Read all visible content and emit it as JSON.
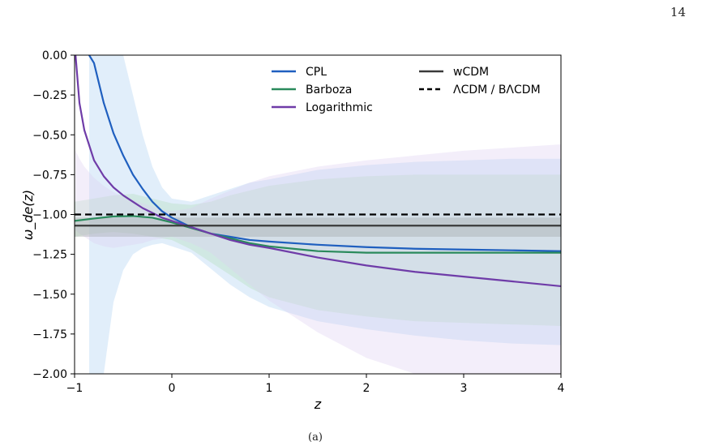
{
  "page": {
    "number": "14",
    "caption": "(a)"
  },
  "chart_data": {
    "type": "line",
    "xlabel": "z",
    "ylabel": "ω_de(z)",
    "xlim": [
      -1,
      4
    ],
    "ylim": [
      -2.0,
      0.0
    ],
    "xticks": [
      -1,
      0,
      1,
      2,
      3,
      4
    ],
    "yticks": [
      0.0,
      -0.25,
      -0.5,
      -0.75,
      -1.0,
      -1.25,
      -1.5,
      -1.75,
      -2.0
    ],
    "grid": false,
    "legend_position": "top-right",
    "series": [
      {
        "name": "CPL",
        "color": "#1f5fbf",
        "dash": "solid",
        "band_color": "#a8cdf0",
        "x": [
          -0.85,
          -0.8,
          -0.7,
          -0.6,
          -0.5,
          -0.4,
          -0.3,
          -0.2,
          -0.1,
          0,
          0.2,
          0.4,
          0.6,
          0.8,
          1,
          1.5,
          2,
          2.5,
          3,
          3.5,
          4
        ],
        "y": [
          0.0,
          -0.05,
          -0.3,
          -0.49,
          -0.63,
          -0.75,
          -0.84,
          -0.92,
          -0.98,
          -1.02,
          -1.08,
          -1.12,
          -1.14,
          -1.16,
          -1.17,
          -1.19,
          -1.205,
          -1.215,
          -1.22,
          -1.225,
          -1.23
        ],
        "upper": [
          0.0,
          0.0,
          0.0,
          0.0,
          0.0,
          -0.25,
          -0.5,
          -0.7,
          -0.83,
          -0.9,
          -0.92,
          -0.88,
          -0.84,
          -0.8,
          -0.78,
          -0.72,
          -0.69,
          -0.67,
          -0.66,
          -0.65,
          -0.65
        ],
        "lower": [
          -2.0,
          -2.0,
          -2.0,
          -1.55,
          -1.35,
          -1.25,
          -1.21,
          -1.19,
          -1.18,
          -1.2,
          -1.24,
          -1.34,
          -1.44,
          -1.52,
          -1.58,
          -1.67,
          -1.72,
          -1.76,
          -1.79,
          -1.81,
          -1.82
        ]
      },
      {
        "name": "Barboza",
        "color": "#2a8a5c",
        "dash": "solid",
        "band_color": "#b2ddb6",
        "x": [
          -1,
          -0.8,
          -0.6,
          -0.4,
          -0.2,
          0,
          0.2,
          0.4,
          0.6,
          0.8,
          1,
          1.5,
          2,
          2.5,
          3,
          3.5,
          4
        ],
        "y": [
          -1.04,
          -1.025,
          -1.012,
          -1.01,
          -1.02,
          -1.05,
          -1.085,
          -1.12,
          -1.15,
          -1.18,
          -1.2,
          -1.23,
          -1.24,
          -1.24,
          -1.24,
          -1.24,
          -1.24
        ],
        "upper": [
          -0.92,
          -0.9,
          -0.88,
          -0.87,
          -0.9,
          -0.93,
          -0.94,
          -0.92,
          -0.88,
          -0.85,
          -0.82,
          -0.78,
          -0.76,
          -0.75,
          -0.75,
          -0.75,
          -0.75
        ],
        "lower": [
          -1.14,
          -1.12,
          -1.11,
          -1.12,
          -1.14,
          -1.16,
          -1.22,
          -1.3,
          -1.38,
          -1.46,
          -1.52,
          -1.6,
          -1.64,
          -1.67,
          -1.68,
          -1.69,
          -1.7
        ]
      },
      {
        "name": "Logarithmic",
        "color": "#6f3ca8",
        "dash": "solid",
        "band_color": "#dccff2",
        "x": [
          -0.99,
          -0.95,
          -0.9,
          -0.8,
          -0.7,
          -0.6,
          -0.5,
          -0.4,
          -0.3,
          -0.2,
          -0.1,
          0,
          0.2,
          0.4,
          0.6,
          0.8,
          1,
          1.5,
          2,
          2.5,
          3,
          3.5,
          4
        ],
        "y": [
          0.0,
          -0.3,
          -0.47,
          -0.66,
          -0.76,
          -0.83,
          -0.88,
          -0.92,
          -0.96,
          -0.99,
          -1.02,
          -1.04,
          -1.08,
          -1.12,
          -1.16,
          -1.19,
          -1.21,
          -1.27,
          -1.32,
          -1.36,
          -1.39,
          -1.42,
          -1.45
        ],
        "upper": [
          -0.6,
          -0.65,
          -0.7,
          -0.77,
          -0.82,
          -0.86,
          -0.89,
          -0.91,
          -0.93,
          -0.95,
          -0.97,
          -0.98,
          -0.96,
          -0.9,
          -0.85,
          -0.8,
          -0.76,
          -0.7,
          -0.66,
          -0.63,
          -0.6,
          -0.58,
          -0.56
        ],
        "lower": [
          -1.1,
          -1.12,
          -1.14,
          -1.18,
          -1.2,
          -1.21,
          -1.2,
          -1.19,
          -1.18,
          -1.16,
          -1.15,
          -1.14,
          -1.18,
          -1.24,
          -1.34,
          -1.44,
          -1.54,
          -1.74,
          -1.9,
          -2.0,
          -2.0,
          -2.0,
          -2.0
        ]
      },
      {
        "name": "wCDM",
        "color": "#3a3a3a",
        "dash": "solid",
        "band_color": "#9aa0a0",
        "x": [
          -1,
          4
        ],
        "y": [
          -1.07,
          -1.07
        ],
        "upper": [
          -1.02,
          -1.02
        ],
        "lower": [
          -1.14,
          -1.14
        ]
      },
      {
        "name": "ΛCDM / BΛCDM",
        "color": "#000000",
        "dash": "dashed",
        "x": [
          -1,
          4
        ],
        "y": [
          -1.0,
          -1.0
        ]
      }
    ]
  }
}
